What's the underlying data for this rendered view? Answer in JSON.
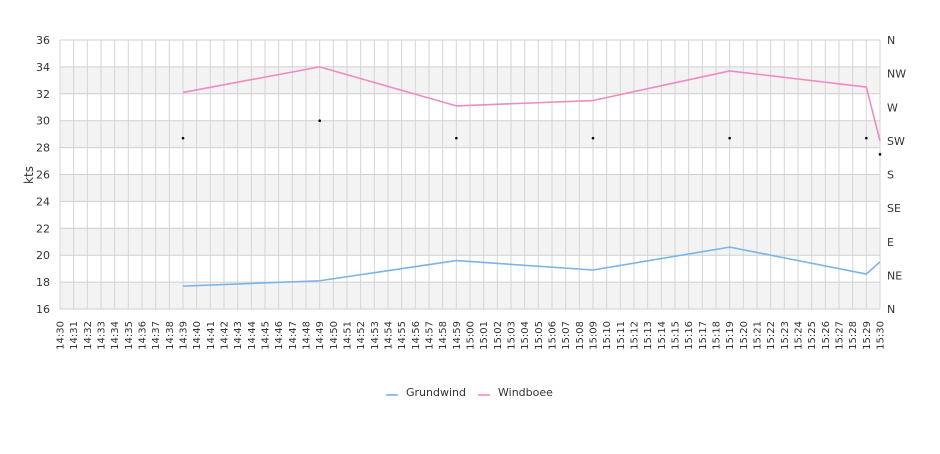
{
  "chart_data": {
    "type": "line",
    "ylabel": "kts",
    "ylim": [
      16,
      36
    ],
    "y_ticks": [
      16,
      18,
      20,
      22,
      24,
      26,
      28,
      30,
      32,
      34,
      36
    ],
    "right_axis_labels": [
      "N",
      "NE",
      "E",
      "SE",
      "S",
      "SW",
      "W",
      "NW",
      "N"
    ],
    "x_tick_labels": [
      "14:30",
      "14:31",
      "14:32",
      "14:33",
      "14:34",
      "14:35",
      "14:36",
      "14:37",
      "14:38",
      "14:39",
      "14:40",
      "14:41",
      "14:42",
      "14:43",
      "14:44",
      "14:45",
      "14:46",
      "14:47",
      "14:48",
      "14:49",
      "14:50",
      "14:51",
      "14:52",
      "14:53",
      "14:54",
      "14:55",
      "14:56",
      "14:57",
      "14:58",
      "14:59",
      "15:00",
      "15:01",
      "15:02",
      "15:03",
      "15:04",
      "15:05",
      "15:06",
      "15:07",
      "15:08",
      "15:09",
      "15:10",
      "15:11",
      "15:12",
      "15:13",
      "15:14",
      "15:15",
      "15:16",
      "15:17",
      "15:18",
      "15:19",
      "15:20",
      "15:21",
      "15:22",
      "15:23",
      "15:24",
      "15:25",
      "15:26",
      "15:27",
      "15:28",
      "15:29",
      "15:30"
    ],
    "grid": true,
    "legend_position": "bottom",
    "series": [
      {
        "name": "Grundwind",
        "color": "#7ab4ea",
        "x": [
          "14:39",
          "14:49",
          "14:59",
          "15:09",
          "15:19",
          "15:29",
          "15:30"
        ],
        "values": [
          17.7,
          18.1,
          19.6,
          18.9,
          20.6,
          18.6,
          19.5
        ]
      },
      {
        "name": "Windboee",
        "color": "#ee8bbf",
        "x": [
          "14:39",
          "14:49",
          "14:59",
          "15:09",
          "15:19",
          "15:29",
          "15:30"
        ],
        "values": [
          32.1,
          34.0,
          31.1,
          31.5,
          33.7,
          32.5,
          28.5
        ]
      }
    ],
    "direction_points": {
      "x": [
        "14:39",
        "14:49",
        "14:59",
        "15:09",
        "15:19",
        "15:29",
        "15:30"
      ],
      "values": [
        28.7,
        30.0,
        28.7,
        28.7,
        28.7,
        28.7,
        27.5
      ]
    }
  }
}
